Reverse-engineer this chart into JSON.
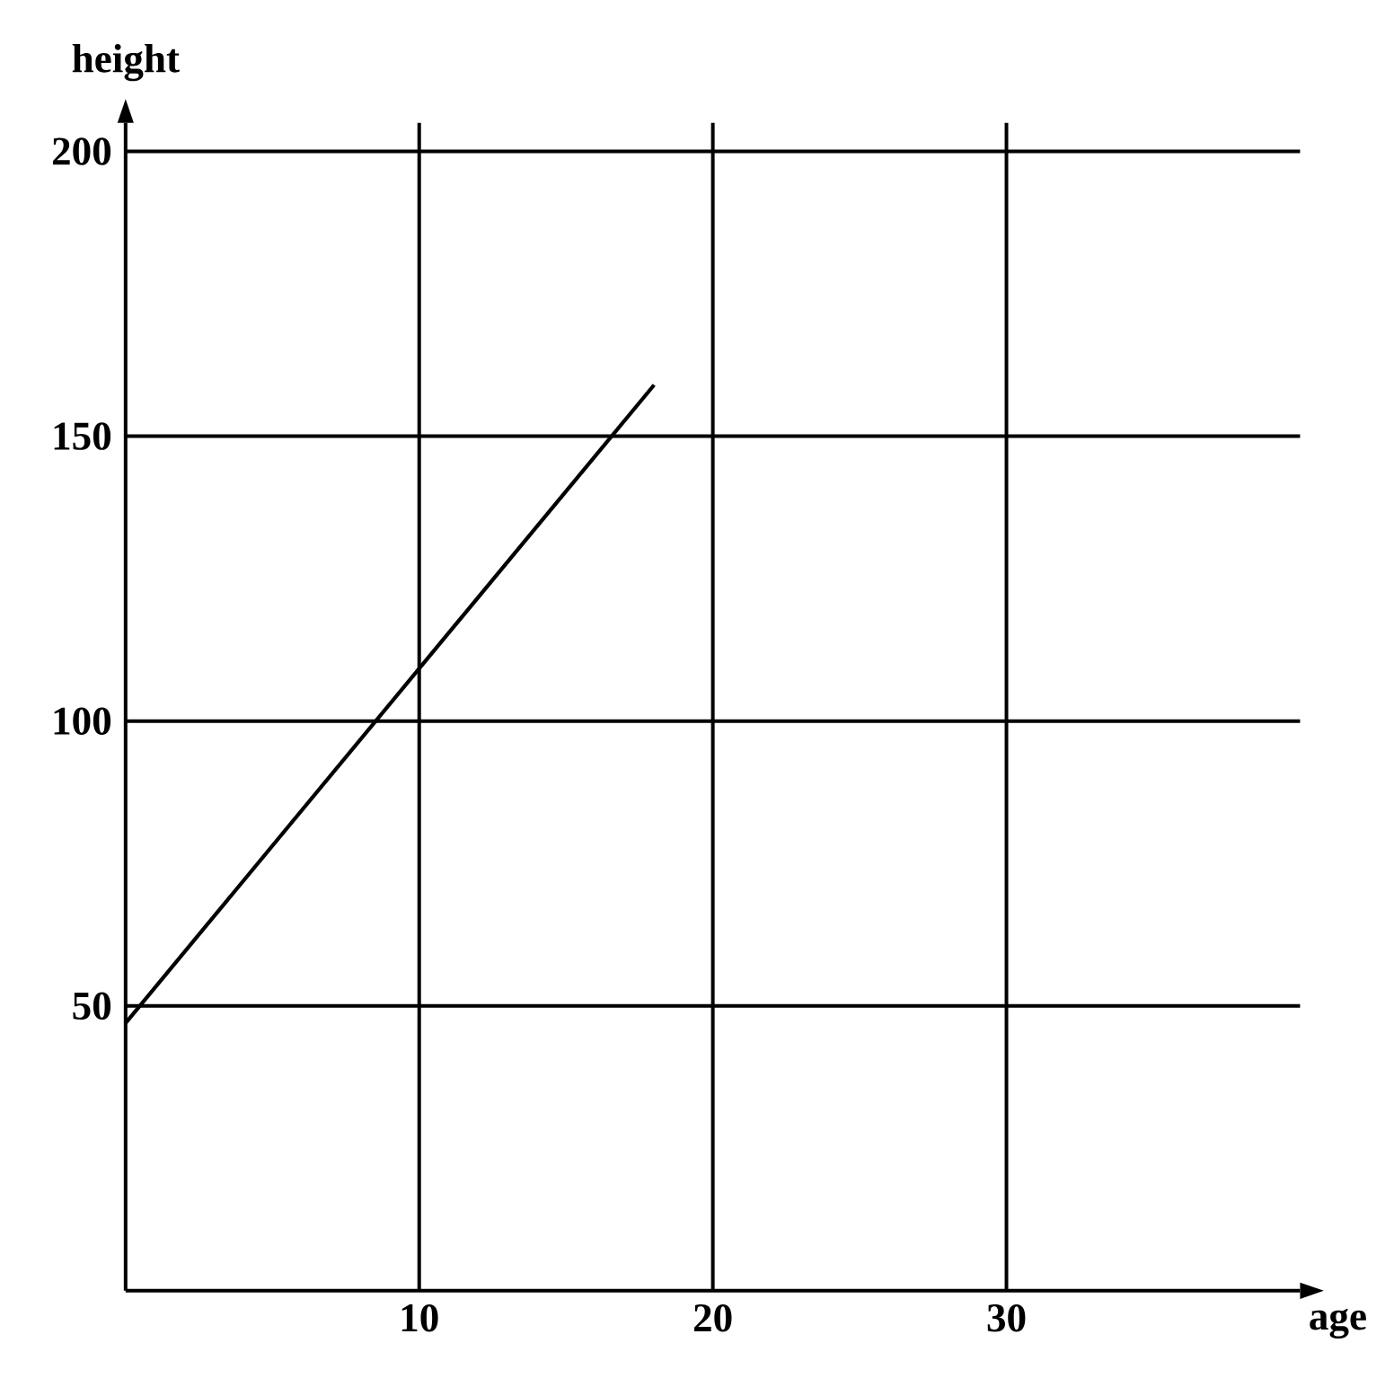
{
  "chart_data": {
    "type": "line",
    "xlabel": "age",
    "ylabel": "height",
    "x": [
      0,
      18
    ],
    "series": [
      {
        "color": "#000000",
        "values": [
          47,
          159
        ]
      }
    ],
    "xlim": [
      0,
      40
    ],
    "ylim": [
      0,
      205
    ],
    "xticks": [
      10,
      20,
      30
    ],
    "yticks": [
      50,
      100,
      150,
      200
    ],
    "grid": true,
    "marker": "none",
    "line_style": "solid"
  }
}
